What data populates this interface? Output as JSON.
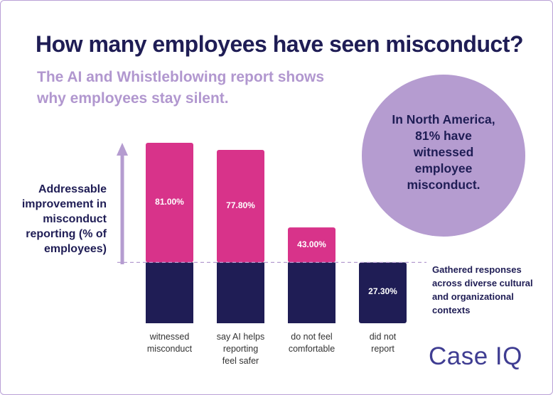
{
  "title": "How many employees have seen misconduct?",
  "subtitle": "The AI and Whistleblowing report shows why employees stay silent.",
  "callout": "In North America, 81% have witnessed employee misconduct.",
  "note": "Gathered responses across diverse cultural and organizational contexts",
  "logo": "Case IQ",
  "colors": {
    "top_segment": "#d8338a",
    "base_segment": "#1f1d55",
    "arrow": "#b59cd0",
    "callout_bg": "#b59cd0",
    "text_dark": "#1f1d55"
  },
  "chart_data": {
    "type": "bar",
    "title": "",
    "ylabel": "Addressable improvement in misconduct reporting (% of employees)",
    "xlabel": "",
    "categories": [
      "witnessed misconduct",
      "say AI helps reporting feel safer",
      "do not feel comfortable",
      "did not report"
    ],
    "values": [
      81.0,
      77.8,
      43.0,
      27.3
    ],
    "value_labels": [
      "81.00%",
      "77.80%",
      "43.00%",
      "27.30%"
    ],
    "baseline": 27.3,
    "ylim": [
      0,
      81
    ],
    "grid": false,
    "legend": "none"
  }
}
